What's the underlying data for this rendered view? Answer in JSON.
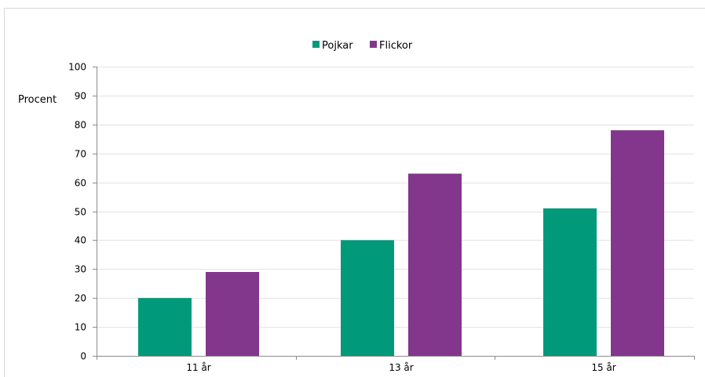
{
  "chart_data": {
    "type": "bar",
    "title": "",
    "xlabel": "",
    "ylabel": "Procent",
    "ylim": [
      0,
      100
    ],
    "yticks": [
      0,
      10,
      20,
      30,
      40,
      50,
      60,
      70,
      80,
      90,
      100
    ],
    "categories": [
      "11 år",
      "13 år",
      "15 år"
    ],
    "series": [
      {
        "name": "Pojkar",
        "color": "#009a7a",
        "values": [
          20,
          40,
          51
        ]
      },
      {
        "name": "Flickor",
        "color": "#82368c",
        "values": [
          29,
          63,
          78
        ]
      }
    ],
    "legend_position": "top-center",
    "grid": true
  }
}
